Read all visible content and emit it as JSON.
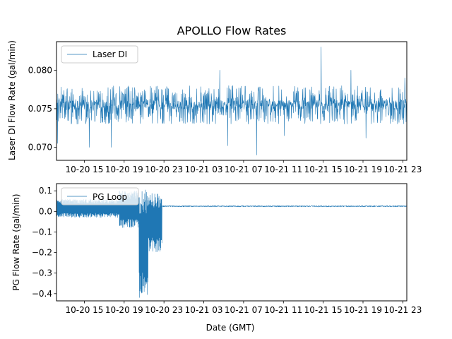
{
  "chart_data": [
    {
      "type": "line",
      "title": "APOLLO Flow Rates",
      "xlabel": "",
      "ylabel": "Laser DI Flow Rate (gal/min)",
      "ylim": [
        0.0683,
        0.0837
      ],
      "xlim_hours": [
        12.2,
        47.4
      ],
      "x_tick_hours": [
        15,
        19,
        23,
        27,
        31,
        35,
        39,
        43,
        47
      ],
      "x_tick_labels": [
        "10-20 15",
        "10-20 19",
        "10-20 23",
        "10-21 03",
        "10-21 07",
        "10-21 11",
        "10-21 15",
        "10-21 19",
        "10-21 23"
      ],
      "y_ticks": [
        0.07,
        0.075,
        0.08
      ],
      "y_tick_labels": [
        "0.070",
        "0.075",
        "0.080"
      ],
      "legend": "top-left",
      "color": "#1f77b4",
      "series": [
        {
          "name": "Laser DI",
          "description": "Noisy signal oscillating mostly between 0.073 and 0.078 gal/min, centered near 0.0755, with occasional spikes",
          "band": [
            0.073,
            0.078
          ],
          "center": 0.0755,
          "outliers": [
            {
              "x": 12.3,
              "y": 0.0705
            },
            {
              "x": 15.5,
              "y": 0.07
            },
            {
              "x": 17.7,
              "y": 0.07
            },
            {
              "x": 28.6,
              "y": 0.08
            },
            {
              "x": 29.4,
              "y": 0.0702
            },
            {
              "x": 32.3,
              "y": 0.069
            },
            {
              "x": 35.1,
              "y": 0.0715
            },
            {
              "x": 38.8,
              "y": 0.083
            },
            {
              "x": 41.8,
              "y": 0.08
            },
            {
              "x": 43.3,
              "y": 0.0712
            },
            {
              "x": 47.2,
              "y": 0.079
            }
          ]
        }
      ]
    },
    {
      "type": "line",
      "title": "",
      "xlabel": "Date (GMT)",
      "ylabel": "PG Flow Rate (gal/min)",
      "ylim": [
        -0.435,
        0.135
      ],
      "xlim_hours": [
        12.2,
        47.4
      ],
      "x_tick_hours": [
        15,
        19,
        23,
        27,
        31,
        35,
        39,
        43,
        47
      ],
      "x_tick_labels": [
        "10-20 15",
        "10-20 19",
        "10-20 23",
        "10-21 03",
        "10-21 07",
        "10-21 11",
        "10-21 15",
        "10-21 19",
        "10-21 23"
      ],
      "y_ticks": [
        -0.4,
        -0.3,
        -0.2,
        -0.1,
        0.0,
        0.1
      ],
      "y_tick_labels": [
        "−0.4",
        "−0.3",
        "−0.2",
        "−0.1",
        "0.0",
        "0.1"
      ],
      "legend": "top-left",
      "color": "#1f77b4",
      "series": [
        {
          "name": "PG Loop",
          "description": "Noisy near 0.0 to 0.05 early, with growing oscillations and a sharp dip to about -0.42 around hour 21, then stabilizes at about 0.025 after hour 22.8",
          "segments": [
            {
              "from": 12.2,
              "to": 18.5,
              "low": -0.03,
              "high": 0.06
            },
            {
              "from": 18.5,
              "to": 20.5,
              "low": -0.08,
              "high": 0.1
            },
            {
              "from": 20.5,
              "to": 21.4,
              "low": -0.42,
              "high": 0.11
            },
            {
              "from": 21.4,
              "to": 22.8,
              "low": -0.2,
              "high": 0.09
            },
            {
              "from": 22.8,
              "to": 47.4,
              "low": 0.022,
              "high": 0.029
            }
          ],
          "stable_value": 0.025
        }
      ]
    }
  ]
}
